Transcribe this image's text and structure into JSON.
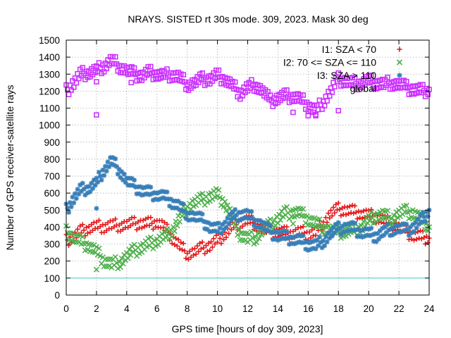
{
  "chart_data": {
    "type": "scatter",
    "title": "NRAYS. SISTED rt 30s mode. 309, 2023. Mask 30 deg",
    "xlabel": "GPS time [hours of doy 309, 2023]",
    "ylabel": "Number of GPS receiver-satellite rays",
    "xlim": [
      0,
      24
    ],
    "ylim": [
      0,
      1500
    ],
    "x_ticks": [
      0,
      2,
      4,
      6,
      8,
      10,
      12,
      14,
      16,
      18,
      20,
      22,
      24
    ],
    "y_ticks": [
      0,
      100,
      200,
      300,
      400,
      500,
      600,
      700,
      800,
      900,
      1000,
      1100,
      1200,
      1300,
      1400,
      1500
    ],
    "grid": true,
    "legend_position": "top-right",
    "series": [
      {
        "name": "I1: SZA < 70",
        "marker": "plus",
        "color": "#e41a1c",
        "x": [
          0,
          0.5,
          1,
          1.5,
          2,
          2.5,
          3,
          3.5,
          4,
          4.5,
          5,
          5.5,
          6,
          6.5,
          7,
          7.5,
          8,
          8.5,
          9,
          9.5,
          10,
          10.5,
          11,
          11.5,
          12,
          12.5,
          13,
          13.5,
          14,
          14.5,
          15,
          15.5,
          16,
          16.5,
          17,
          17.5,
          18,
          18.5,
          19,
          19.5,
          20,
          20.5,
          21,
          21.5,
          22,
          22.5,
          23,
          23.5,
          24
        ],
        "y": [
          320,
          345,
          375,
          395,
          402,
          405,
          410,
          412,
          415,
          420,
          422,
          418,
          430,
          400,
          340,
          290,
          245,
          255,
          275,
          290,
          320,
          360,
          400,
          430,
          440,
          420,
          385,
          370,
          370,
          365,
          365,
          370,
          360,
          370,
          430,
          480,
          505,
          500,
          490,
          480,
          470,
          460,
          440,
          420,
          400,
          370,
          350,
          340,
          335
        ]
      },
      {
        "name": "I2: 70 <= SZA <= 110",
        "marker": "cross",
        "color": "#4daf4a",
        "x": [
          0,
          0.5,
          1,
          1.5,
          2,
          2.5,
          3,
          3.5,
          4,
          4.5,
          5,
          5.5,
          6,
          6.5,
          7,
          7.5,
          8,
          8.5,
          9,
          9.5,
          10,
          10.5,
          11,
          11.5,
          12,
          12.5,
          13,
          13.5,
          14,
          14.5,
          15,
          15.5,
          16,
          16.5,
          17,
          17.5,
          18,
          18.5,
          19,
          19.5,
          20,
          20.5,
          21,
          21.5,
          22,
          22.5,
          23,
          23.5,
          24
        ],
        "y": [
          370,
          340,
          310,
          290,
          255,
          205,
          180,
          195,
          230,
          260,
          280,
          300,
          320,
          340,
          380,
          450,
          520,
          545,
          560,
          580,
          590,
          540,
          450,
          360,
          330,
          340,
          380,
          410,
          450,
          480,
          490,
          480,
          450,
          420,
          400,
          380,
          370,
          375,
          380,
          400,
          440,
          470,
          470,
          450,
          480,
          490,
          480,
          440,
          400
        ]
      },
      {
        "name": "I3: SZA > 110",
        "marker": "star",
        "color": "#377eb8",
        "x": [
          0,
          0.5,
          1,
          1.5,
          2,
          2.5,
          3,
          3.5,
          4,
          4.5,
          5,
          5.5,
          6,
          6.5,
          7,
          7.5,
          8,
          8.5,
          9,
          9.5,
          10,
          10.5,
          11,
          11.5,
          12,
          12.5,
          13,
          13.5,
          14,
          14.5,
          15,
          15.5,
          16,
          16.5,
          17,
          17.5,
          18,
          18.5,
          19,
          19.5,
          20,
          20.5,
          21,
          21.5,
          22,
          22.5,
          23,
          23.5,
          24
        ],
        "y": [
          500,
          570,
          620,
          630,
          660,
          740,
          790,
          740,
          670,
          640,
          615,
          600,
          590,
          580,
          550,
          520,
          480,
          460,
          440,
          400,
          380,
          420,
          460,
          480,
          470,
          440,
          410,
          370,
          350,
          340,
          330,
          320,
          300,
          290,
          320,
          360,
          390,
          400,
          390,
          370,
          360,
          350,
          370,
          390,
          390,
          380,
          400,
          440,
          500
        ]
      },
      {
        "name": "global",
        "marker": "square",
        "color": "#cc33ff",
        "x": [
          0,
          0.5,
          1,
          1.5,
          2,
          2.5,
          3,
          3.5,
          4,
          4.5,
          5,
          5.5,
          6,
          6.5,
          7,
          7.5,
          8,
          8.5,
          9,
          9.5,
          10,
          10.5,
          11,
          11.5,
          12,
          12.5,
          13,
          13.5,
          14,
          14.5,
          15,
          15.5,
          16,
          16.5,
          17,
          17.5,
          18,
          18.5,
          19,
          19.5,
          20,
          20.5,
          21,
          21.5,
          22,
          22.5,
          23,
          23.5,
          24
        ],
        "y": [
          1200,
          1250,
          1300,
          1310,
          1320,
          1350,
          1380,
          1350,
          1320,
          1300,
          1290,
          1310,
          1300,
          1290,
          1300,
          1280,
          1240,
          1250,
          1270,
          1270,
          1290,
          1270,
          1230,
          1190,
          1220,
          1240,
          1200,
          1140,
          1160,
          1170,
          1170,
          1150,
          1120,
          1080,
          1140,
          1200,
          1270,
          1260,
          1240,
          1250,
          1260,
          1250,
          1240,
          1250,
          1240,
          1220,
          1210,
          1200,
          1210
        ]
      }
    ],
    "reference_line": {
      "y": 100,
      "color": "#33cccc"
    },
    "outliers": [
      {
        "series": "I2: 70 <= SZA <= 110",
        "x": [
          2,
          15
        ],
        "y": [
          150,
          420
        ]
      },
      {
        "series": "I3: SZA > 110",
        "x": [
          2
        ],
        "y": [
          510
        ]
      },
      {
        "series": "global",
        "x": [
          2,
          2,
          4.3,
          15,
          16,
          16.5,
          18
        ],
        "y": [
          1060,
          1255,
          1250,
          1075,
          1055,
          1055,
          1085
        ]
      }
    ]
  }
}
